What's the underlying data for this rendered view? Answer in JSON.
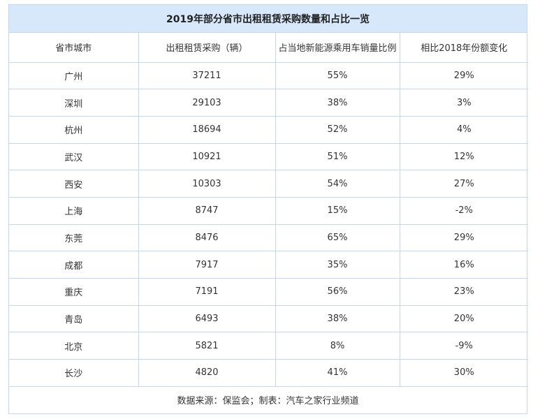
{
  "title_bar": {
    "text": "2019年部分省市出租租赁采购数量和占比一览"
  },
  "table": {
    "headers": [
      "省市城市",
      "出租租赁采购（辆）",
      "占当地新能源乘用车销量比例",
      "相比2018年份额变化"
    ],
    "rows": [
      [
        "广州",
        "37211",
        "55%",
        "29%"
      ],
      [
        "深圳",
        "29103",
        "38%",
        "3%"
      ],
      [
        "杭州",
        "18694",
        "52%",
        "4%"
      ],
      [
        "武汉",
        "10921",
        "51%",
        "12%"
      ],
      [
        "西安",
        "10303",
        "54%",
        "27%"
      ],
      [
        "上海",
        "8747",
        "15%",
        "-2%"
      ],
      [
        "东莞",
        "8476",
        "65%",
        "29%"
      ],
      [
        "成都",
        "7917",
        "35%",
        "16%"
      ],
      [
        "重庆",
        "7191",
        "56%",
        "23%"
      ],
      [
        "青岛",
        "6493",
        "38%",
        "20%"
      ],
      [
        "北京",
        "5821",
        "8%",
        "-9%"
      ],
      [
        "长沙",
        "4820",
        "41%",
        "30%"
      ]
    ]
  },
  "footer": {
    "text": "数据来源：保监会；制表：汽车之家行业频道"
  },
  "colors": {
    "title_bg": "#d6e8f9",
    "border": "#c5d7f0",
    "text": "#333333",
    "title_text": "#222222",
    "page_bg": "#ffffff"
  },
  "chart_data": {
    "type": "table",
    "title": "2019年部分省市出租租赁采购数量和占比一览",
    "columns": [
      "省市城市",
      "出租租赁采购（辆）",
      "占当地新能源乘用车销量比例",
      "相比2018年份额变化"
    ],
    "cities": [
      "广州",
      "深圳",
      "杭州",
      "武汉",
      "西安",
      "上海",
      "东莞",
      "成都",
      "重庆",
      "青岛",
      "北京",
      "长沙"
    ],
    "series": [
      {
        "name": "出租租赁采购（辆）",
        "values": [
          37211,
          29103,
          18694,
          10921,
          10303,
          8747,
          8476,
          7917,
          7191,
          6493,
          5821,
          4820
        ]
      },
      {
        "name": "占当地新能源乘用车销量比例(%)",
        "values": [
          55,
          38,
          52,
          51,
          54,
          15,
          65,
          35,
          56,
          38,
          8,
          41
        ]
      },
      {
        "name": "相比2018年份额变化(%)",
        "values": [
          29,
          3,
          4,
          12,
          27,
          -2,
          29,
          16,
          23,
          20,
          -9,
          30
        ]
      }
    ],
    "footer": "数据来源：保监会；制表：汽车之家行业频道"
  }
}
